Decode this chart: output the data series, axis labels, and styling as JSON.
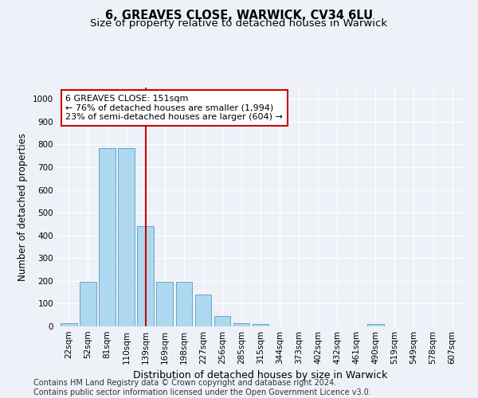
{
  "title": "6, GREAVES CLOSE, WARWICK, CV34 6LU",
  "subtitle": "Size of property relative to detached houses in Warwick",
  "xlabel": "Distribution of detached houses by size in Warwick",
  "ylabel": "Number of detached properties",
  "categories": [
    "22sqm",
    "52sqm",
    "81sqm",
    "110sqm",
    "139sqm",
    "169sqm",
    "198sqm",
    "227sqm",
    "256sqm",
    "285sqm",
    "315sqm",
    "344sqm",
    "373sqm",
    "402sqm",
    "432sqm",
    "461sqm",
    "490sqm",
    "519sqm",
    "549sqm",
    "578sqm",
    "607sqm"
  ],
  "values": [
    15,
    195,
    785,
    785,
    440,
    195,
    195,
    140,
    45,
    15,
    10,
    0,
    0,
    0,
    0,
    0,
    10,
    0,
    0,
    0,
    0
  ],
  "bar_color": "#add8f0",
  "bar_edge_color": "#5a9abf",
  "vline_x": 4,
  "vline_color": "#cc0000",
  "annotation_text": "6 GREAVES CLOSE: 151sqm\n← 76% of detached houses are smaller (1,994)\n23% of semi-detached houses are larger (604) →",
  "annotation_box_color": "#ffffff",
  "annotation_box_edge": "#cc0000",
  "ylim": [
    0,
    1050
  ],
  "yticks": [
    0,
    100,
    200,
    300,
    400,
    500,
    600,
    700,
    800,
    900,
    1000
  ],
  "footer_text": "Contains HM Land Registry data © Crown copyright and database right 2024.\nContains public sector information licensed under the Open Government Licence v3.0.",
  "bg_color": "#eef2f8",
  "grid_color": "#ffffff",
  "title_fontsize": 10.5,
  "subtitle_fontsize": 9.5,
  "xlabel_fontsize": 9,
  "ylabel_fontsize": 8.5,
  "tick_fontsize": 7.5,
  "footer_fontsize": 7
}
